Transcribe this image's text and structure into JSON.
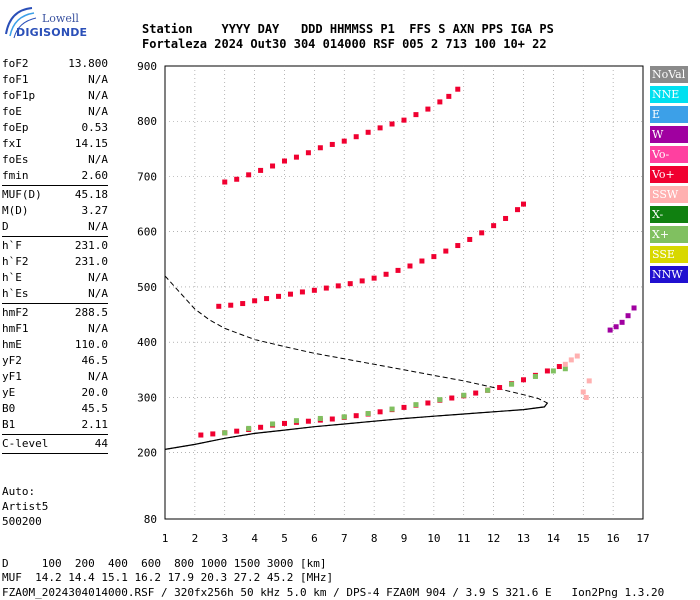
{
  "logo": {
    "line1": "Lowell",
    "line2": "DIGISONDE"
  },
  "header": {
    "line1": "Station    YYYY DAY   DDD HHMMSS P1  FFS S AXN PPS IGA PS",
    "line2": "Fortaleza 2024 Out30 304 014000 RSF 005 2 713 100 10+ 22"
  },
  "params": [
    {
      "k": "foF2",
      "v": "13.800"
    },
    {
      "k": "foF1",
      "v": "N/A"
    },
    {
      "k": "foF1p",
      "v": "N/A"
    },
    {
      "k": "foE",
      "v": "N/A"
    },
    {
      "k": "foEp",
      "v": "0.53"
    },
    {
      "k": "fxI",
      "v": "14.15"
    },
    {
      "k": "foEs",
      "v": "N/A"
    },
    {
      "k": "fmin",
      "v": "2.60"
    },
    {
      "sep": true
    },
    {
      "k": "MUF(D)",
      "v": "45.18"
    },
    {
      "k": "M(D)",
      "v": "3.27"
    },
    {
      "k": "D",
      "v": "N/A"
    },
    {
      "sep": true
    },
    {
      "k": "h`F",
      "v": "231.0"
    },
    {
      "k": "h`F2",
      "v": "231.0"
    },
    {
      "k": "h`E",
      "v": "N/A"
    },
    {
      "k": "h`Es",
      "v": "N/A"
    },
    {
      "sep": true
    },
    {
      "k": "hmF2",
      "v": "288.5"
    },
    {
      "k": "hmF1",
      "v": "N/A"
    },
    {
      "k": "hmE",
      "v": "110.0"
    },
    {
      "k": "yF2",
      "v": "46.5"
    },
    {
      "k": "yF1",
      "v": "N/A"
    },
    {
      "k": "yE",
      "v": "20.0"
    },
    {
      "k": "B0",
      "v": "45.5"
    },
    {
      "k": "B1",
      "v": "2.11"
    },
    {
      "sep": true
    },
    {
      "k": "C-level",
      "v": "44"
    },
    {
      "sep": true
    }
  ],
  "auto": {
    "line1": "Auto:",
    "line2": "Artist5",
    "line3": "500200"
  },
  "legend": [
    {
      "label": "NoVal",
      "color": "#8a8a8a"
    },
    {
      "label": "NNE",
      "color": "#00e0f0"
    },
    {
      "label": "E",
      "color": "#3ca0e8"
    },
    {
      "label": "W",
      "color": "#a000a0"
    },
    {
      "label": "Vo-",
      "color": "#ff40a0"
    },
    {
      "label": "Vo+",
      "color": "#f00030"
    },
    {
      "label": "SSW",
      "color": "#ffb0b0"
    },
    {
      "label": "X-",
      "color": "#108010"
    },
    {
      "label": "X+",
      "color": "#80c060"
    },
    {
      "label": "SSE",
      "color": "#d8d800"
    },
    {
      "label": "NNW",
      "color": "#2010d0"
    }
  ],
  "footer": {
    "line1": "D     100  200  400  600  800 1000 1500 3000 [km]",
    "line2": "MUF  14.2 14.4 15.1 16.2 17.9 20.3 27.2 45.2 [MHz]",
    "line3": "FZA0M_2024304014000.RSF / 320fx256h 50 kHz 5.0 km / DPS-4 FZA0M 904 / 3.9 S 321.6 E   Ion2Png 1.3.20"
  },
  "chart_data": {
    "type": "scatter",
    "xlim": [
      1,
      17
    ],
    "ylim": [
      80,
      900
    ],
    "xticks": [
      1,
      2,
      3,
      4,
      5,
      6,
      7,
      8,
      9,
      10,
      11,
      12,
      13,
      14,
      15,
      16,
      17
    ],
    "yticks": [
      80,
      200,
      300,
      400,
      500,
      600,
      700,
      800,
      900
    ],
    "grid": "dotted",
    "series": [
      {
        "trace": "o-trace-1st-hop",
        "color": "#f00030",
        "points": [
          [
            2.2,
            232
          ],
          [
            2.6,
            234
          ],
          [
            3.0,
            236
          ],
          [
            3.4,
            239
          ],
          [
            3.8,
            242
          ],
          [
            4.2,
            246
          ],
          [
            4.6,
            250
          ],
          [
            5.0,
            253
          ],
          [
            5.4,
            255
          ],
          [
            5.8,
            257
          ],
          [
            6.2,
            259
          ],
          [
            6.6,
            261
          ],
          [
            7.0,
            264
          ],
          [
            7.4,
            267
          ],
          [
            7.8,
            270
          ],
          [
            8.2,
            274
          ],
          [
            8.6,
            278
          ],
          [
            9.0,
            282
          ],
          [
            9.4,
            286
          ],
          [
            9.8,
            290
          ],
          [
            10.2,
            295
          ],
          [
            10.6,
            299
          ],
          [
            11.0,
            303
          ],
          [
            11.4,
            308
          ],
          [
            11.8,
            313
          ],
          [
            12.2,
            318
          ],
          [
            12.6,
            325
          ],
          [
            13.0,
            332
          ],
          [
            13.4,
            340
          ],
          [
            13.8,
            348
          ],
          [
            14.2,
            356
          ]
        ]
      },
      {
        "trace": "x-trace-1st-hop",
        "color": "#80c060",
        "points": [
          [
            3.0,
            236
          ],
          [
            3.8,
            244
          ],
          [
            4.6,
            252
          ],
          [
            5.4,
            258
          ],
          [
            6.2,
            262
          ],
          [
            7.0,
            265
          ],
          [
            7.8,
            271
          ],
          [
            8.6,
            279
          ],
          [
            9.4,
            287
          ],
          [
            10.2,
            296
          ],
          [
            11.0,
            304
          ],
          [
            11.8,
            313
          ],
          [
            12.6,
            324
          ],
          [
            13.4,
            338
          ],
          [
            14.0,
            348
          ],
          [
            14.4,
            352
          ]
        ]
      },
      {
        "trace": "o-trace-2nd-hop",
        "color": "#f00030",
        "points": [
          [
            2.8,
            465
          ],
          [
            3.2,
            467
          ],
          [
            3.6,
            470
          ],
          [
            4.0,
            475
          ],
          [
            4.4,
            479
          ],
          [
            4.8,
            483
          ],
          [
            5.2,
            487
          ],
          [
            5.6,
            491
          ],
          [
            6.0,
            494
          ],
          [
            6.4,
            498
          ],
          [
            6.8,
            502
          ],
          [
            7.2,
            506
          ],
          [
            7.6,
            511
          ],
          [
            8.0,
            516
          ],
          [
            8.4,
            523
          ],
          [
            8.8,
            530
          ],
          [
            9.2,
            538
          ],
          [
            9.6,
            547
          ],
          [
            10.0,
            555
          ],
          [
            10.4,
            565
          ],
          [
            10.8,
            575
          ],
          [
            11.2,
            586
          ],
          [
            11.6,
            598
          ],
          [
            12.0,
            611
          ],
          [
            12.4,
            624
          ],
          [
            12.8,
            640
          ],
          [
            13.0,
            650
          ]
        ]
      },
      {
        "trace": "o-trace-3rd-hop",
        "color": "#f00030",
        "points": [
          [
            3.0,
            690
          ],
          [
            3.4,
            695
          ],
          [
            3.8,
            703
          ],
          [
            4.2,
            711
          ],
          [
            4.6,
            719
          ],
          [
            5.0,
            728
          ],
          [
            5.4,
            735
          ],
          [
            5.8,
            743
          ],
          [
            6.2,
            752
          ],
          [
            6.6,
            758
          ],
          [
            7.0,
            764
          ],
          [
            7.4,
            772
          ],
          [
            7.8,
            780
          ],
          [
            8.2,
            788
          ],
          [
            8.6,
            795
          ],
          [
            9.0,
            802
          ],
          [
            9.4,
            812
          ],
          [
            9.8,
            822
          ],
          [
            10.2,
            835
          ],
          [
            10.5,
            845
          ],
          [
            10.8,
            858
          ]
        ]
      },
      {
        "trace": "w-trace",
        "color": "#a000a0",
        "points": [
          [
            15.9,
            422
          ],
          [
            16.1,
            428
          ],
          [
            16.3,
            436
          ],
          [
            16.5,
            448
          ],
          [
            16.7,
            462
          ]
        ]
      },
      {
        "trace": "ssw-scatter",
        "color": "#ffb0b0",
        "points": [
          [
            14.4,
            360
          ],
          [
            14.6,
            368
          ],
          [
            14.8,
            375
          ],
          [
            15.0,
            310
          ],
          [
            15.1,
            300
          ],
          [
            15.2,
            330
          ]
        ]
      }
    ],
    "profile_curve": [
      [
        1.0,
        520
      ],
      [
        1.5,
        490
      ],
      [
        2.0,
        460
      ],
      [
        2.5,
        440
      ],
      [
        3.0,
        425
      ],
      [
        4.0,
        405
      ],
      [
        5.0,
        392
      ],
      [
        6.0,
        380
      ],
      [
        7.0,
        370
      ],
      [
        8.0,
        360
      ],
      [
        9.0,
        350
      ],
      [
        10.0,
        340
      ],
      [
        11.0,
        330
      ],
      [
        12.0,
        318
      ],
      [
        13.0,
        305
      ],
      [
        13.5,
        298
      ],
      [
        13.8,
        290
      ],
      [
        13.7,
        283
      ],
      [
        13.0,
        278
      ],
      [
        12.0,
        274
      ],
      [
        11.0,
        270
      ],
      [
        10.0,
        266
      ],
      [
        9.0,
        262
      ],
      [
        8.0,
        257
      ],
      [
        7.0,
        252
      ],
      [
        6.0,
        247
      ],
      [
        5.0,
        241
      ],
      [
        4.0,
        235
      ],
      [
        3.0,
        226
      ],
      [
        2.0,
        215
      ],
      [
        1.0,
        206
      ]
    ],
    "virtual_height_curve": [
      [
        1.0,
        206
      ],
      [
        2.0,
        215
      ],
      [
        3.0,
        226
      ],
      [
        4.0,
        235
      ],
      [
        5.0,
        241
      ],
      [
        6.0,
        247
      ],
      [
        7.0,
        252
      ],
      [
        8.0,
        257
      ],
      [
        9.0,
        262
      ],
      [
        10.0,
        266
      ],
      [
        11.0,
        270
      ],
      [
        12.0,
        274
      ],
      [
        13.0,
        278
      ],
      [
        13.7,
        283
      ],
      [
        13.8,
        290
      ]
    ]
  }
}
